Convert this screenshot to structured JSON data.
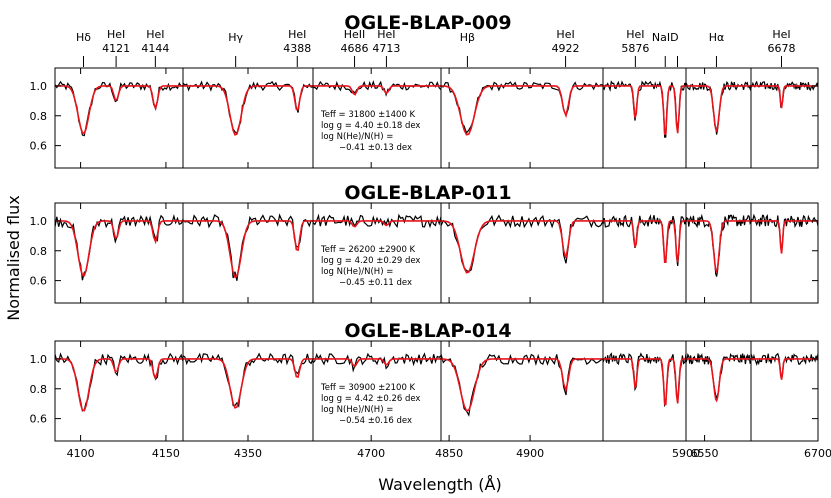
{
  "chart_data": {
    "type": "line",
    "ylabel": "Normalised flux",
    "xlabel": "Wavelength (Å)",
    "y_ticks": [
      "1.0",
      "0.8",
      "0.6"
    ],
    "ylim": [
      0.45,
      1.12
    ],
    "panels": [
      {
        "xmin": 4085,
        "xmax": 4160,
        "ticks": [
          4100,
          4150
        ],
        "tick_labels": [
          "4100",
          "4150"
        ],
        "lines": [
          {
            "name": "Hδ",
            "w": 4101.7
          },
          {
            "name": "HeI",
            "w": 4120.8,
            "wl": "4121"
          },
          {
            "name": "HeI",
            "w": 4143.8,
            "wl": "4144"
          }
        ]
      },
      {
        "xmin": 4300,
        "xmax": 4400,
        "ticks": [
          4350
        ],
        "tick_labels": [
          "4350"
        ],
        "lines": [
          {
            "name": "Hγ",
            "w": 4340.5
          },
          {
            "name": "HeI",
            "w": 4387.9,
            "wl": "4388"
          }
        ]
      },
      {
        "xmin": 4650,
        "xmax": 4760,
        "ticks": [
          4700
        ],
        "tick_labels": [
          "4700"
        ],
        "lines": [
          {
            "name": "HeII",
            "w": 4685.7,
            "wl": "4686"
          },
          {
            "name": "HeI",
            "w": 4713.1,
            "wl": "4713"
          }
        ]
      },
      {
        "xmin": 4845,
        "xmax": 4945,
        "ticks": [
          4850,
          4900
        ],
        "tick_labels": [
          "4850",
          "4900"
        ],
        "lines": [
          {
            "name": "Hβ",
            "w": 4861.3
          },
          {
            "name": "HeI",
            "w": 4921.9,
            "wl": "4922"
          }
        ]
      },
      {
        "xmin": 5860,
        "xmax": 5900,
        "ticks": [
          5900
        ],
        "tick_labels": [
          "5900"
        ],
        "lines": [
          {
            "name": "HeI",
            "w": 5875.6,
            "wl": "5876"
          },
          {
            "name": "NaID",
            "w": 5890.0
          },
          {
            "name": "",
            "w": 5895.9
          }
        ]
      },
      {
        "xmin": 6530,
        "xmax": 6600,
        "ticks": [
          6550
        ],
        "tick_labels": [
          "6550"
        ],
        "lines": [
          {
            "name": "Hα",
            "w": 6562.8
          }
        ]
      },
      {
        "xmin": 6660,
        "xmax": 6700,
        "ticks": [
          6700
        ],
        "tick_labels": [
          "6700"
        ],
        "lines": [
          {
            "name": "HeI",
            "w": 6678.2,
            "wl": "6678"
          }
        ]
      }
    ],
    "rows": [
      {
        "title": "OGLE-BLAP-009",
        "params": [
          "Teff = 31800 ±1400 K",
          "log g = 4.40 ±0.18 dex",
          "log N(He)/N(H) =",
          "−0.41 ±0.13 dex"
        ],
        "depths": [
          [
            0.32,
            0.1,
            0.15
          ],
          [
            0.33,
            0.17
          ],
          [
            0.06,
            0.05
          ],
          [
            0.33,
            0.2
          ],
          [
            0.22,
            0.35,
            0.32
          ],
          [
            0.3
          ],
          [
            0.15
          ]
        ],
        "noise": 0.035
      },
      {
        "title": "OGLE-BLAP-011",
        "params": [
          "Teff = 26200 ±2900 K",
          "log g = 4.20 ±0.29 dex",
          "log N(He)/N(H) =",
          "−0.45 ±0.11 dex"
        ],
        "depths": [
          [
            0.37,
            0.12,
            0.14
          ],
          [
            0.38,
            0.21
          ],
          [
            0.04,
            0.03
          ],
          [
            0.35,
            0.25
          ],
          [
            0.18,
            0.3,
            0.28
          ],
          [
            0.34
          ],
          [
            0.22
          ]
        ],
        "noise": 0.05
      },
      {
        "title": "OGLE-BLAP-014",
        "params": [
          "Teff = 30900 ±2100 K",
          "log g = 4.42 ±0.26 dex",
          "log N(He)/N(H) =",
          "−0.54 ±0.16 dex"
        ],
        "depths": [
          [
            0.35,
            0.09,
            0.13
          ],
          [
            0.33,
            0.13
          ],
          [
            0.05,
            0.04
          ],
          [
            0.35,
            0.21
          ],
          [
            0.2,
            0.33,
            0.3
          ],
          [
            0.28
          ],
          [
            0.14
          ]
        ],
        "noise": 0.045
      }
    ],
    "colors": {
      "model": "#e8141b",
      "observed": "#000000",
      "frame": "#000000"
    }
  }
}
